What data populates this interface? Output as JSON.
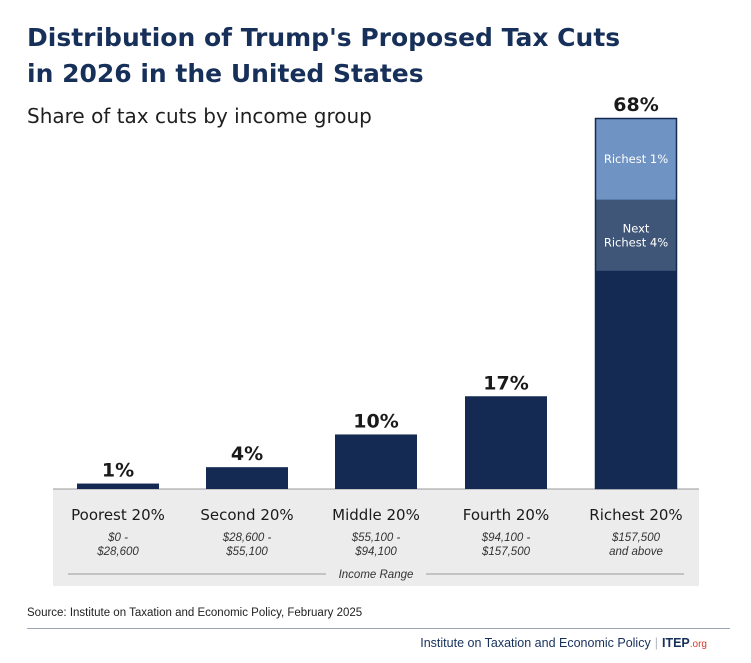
{
  "header": {
    "title_line1": "Distribution of Trump's Proposed Tax Cuts",
    "title_line2": "in 2026 in the United States",
    "subtitle": "Share of tax cuts by income group"
  },
  "chart_data": {
    "type": "bar",
    "categories": [
      "Poorest 20%",
      "Second 20%",
      "Middle 20%",
      "Fourth 20%",
      "Richest 20%"
    ],
    "ranges": [
      [
        "$0 -",
        "$28,600"
      ],
      [
        "$28,600 -",
        "$55,100"
      ],
      [
        "$55,100 -",
        "$94,100"
      ],
      [
        "$94,100 -",
        "$157,500"
      ],
      [
        "$157,500",
        "and above"
      ]
    ],
    "values": [
      1,
      4,
      10,
      17,
      68
    ],
    "value_labels": [
      "1%",
      "4%",
      "10%",
      "17%",
      "68%"
    ],
    "stack_on_last": [
      {
        "label": [
          "Richest 1%"
        ],
        "from": 53,
        "to": 68,
        "color": "#6f93c2"
      },
      {
        "label": [
          "Next",
          "Richest 4%"
        ],
        "from": 40,
        "to": 53,
        "color": "#3f5678"
      }
    ],
    "xlabel": "Income Range",
    "ylim": [
      0,
      68
    ],
    "grid": false,
    "colors": {
      "bar": "#142a52",
      "axis_band": "#ececec",
      "label_text": "#1a1a1a",
      "range_text": "#333333"
    }
  },
  "footer": {
    "source": "Source: Institute on Taxation and Economic Policy, February 2025",
    "org_name": "Institute on Taxation and Economic Policy",
    "separator": "|",
    "logo_main": "ITEP",
    "logo_suffix": ".org"
  }
}
